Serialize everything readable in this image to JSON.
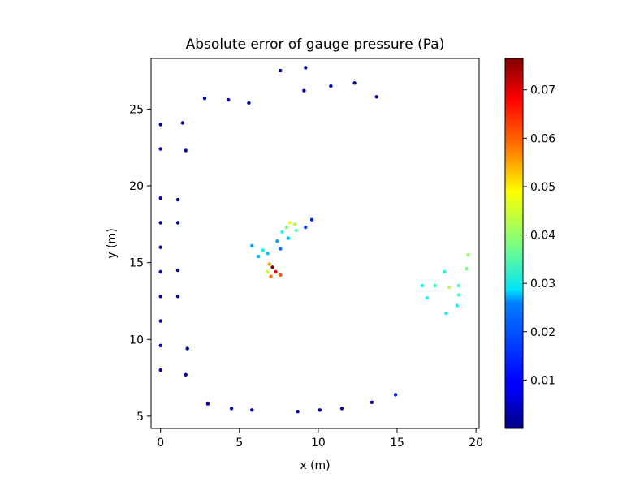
{
  "chart_data": {
    "type": "scatter",
    "title": "Absolute error of gauge pressure (Pa)",
    "xlabel": "x (m)",
    "ylabel": "y (m)",
    "xlim": [
      -0.6,
      20.2
    ],
    "ylim": [
      4.2,
      28.3
    ],
    "x_ticks": [
      0,
      5,
      10,
      15,
      20
    ],
    "y_ticks": [
      5,
      10,
      15,
      20,
      25
    ],
    "colorbar": {
      "colormap": "jet",
      "range": [
        0.0,
        0.0765
      ],
      "ticks": [
        0.01,
        0.02,
        0.03,
        0.04,
        0.05,
        0.06,
        0.07
      ]
    },
    "points": [
      {
        "x": 0.0,
        "y": 24.0,
        "v": 0.003
      },
      {
        "x": 0.0,
        "y": 22.4,
        "v": 0.003
      },
      {
        "x": 0.0,
        "y": 19.2,
        "v": 0.003
      },
      {
        "x": 0.0,
        "y": 17.6,
        "v": 0.003
      },
      {
        "x": 0.0,
        "y": 16.0,
        "v": 0.003
      },
      {
        "x": 0.0,
        "y": 14.4,
        "v": 0.003
      },
      {
        "x": 0.0,
        "y": 12.8,
        "v": 0.003
      },
      {
        "x": 0.0,
        "y": 11.2,
        "v": 0.003
      },
      {
        "x": 0.0,
        "y": 9.6,
        "v": 0.003
      },
      {
        "x": 0.0,
        "y": 8.0,
        "v": 0.003
      },
      {
        "x": 1.4,
        "y": 24.1,
        "v": 0.003
      },
      {
        "x": 1.6,
        "y": 22.3,
        "v": 0.003
      },
      {
        "x": 1.1,
        "y": 19.1,
        "v": 0.003
      },
      {
        "x": 1.1,
        "y": 17.6,
        "v": 0.003
      },
      {
        "x": 1.1,
        "y": 14.5,
        "v": 0.003
      },
      {
        "x": 1.1,
        "y": 12.8,
        "v": 0.003
      },
      {
        "x": 1.7,
        "y": 9.4,
        "v": 0.003
      },
      {
        "x": 1.6,
        "y": 7.7,
        "v": 0.003
      },
      {
        "x": 2.8,
        "y": 25.7,
        "v": 0.003
      },
      {
        "x": 4.3,
        "y": 25.6,
        "v": 0.003
      },
      {
        "x": 5.6,
        "y": 25.4,
        "v": 0.003
      },
      {
        "x": 7.6,
        "y": 27.5,
        "v": 0.003
      },
      {
        "x": 9.2,
        "y": 27.7,
        "v": 0.003
      },
      {
        "x": 10.8,
        "y": 26.5,
        "v": 0.003
      },
      {
        "x": 12.3,
        "y": 26.7,
        "v": 0.003
      },
      {
        "x": 9.1,
        "y": 26.2,
        "v": 0.003
      },
      {
        "x": 13.7,
        "y": 25.8,
        "v": 0.003
      },
      {
        "x": 3.0,
        "y": 5.8,
        "v": 0.003
      },
      {
        "x": 4.5,
        "y": 5.5,
        "v": 0.003
      },
      {
        "x": 5.8,
        "y": 5.4,
        "v": 0.003
      },
      {
        "x": 8.7,
        "y": 5.3,
        "v": 0.003
      },
      {
        "x": 10.1,
        "y": 5.4,
        "v": 0.003
      },
      {
        "x": 11.5,
        "y": 5.5,
        "v": 0.003
      },
      {
        "x": 13.4,
        "y": 5.9,
        "v": 0.003
      },
      {
        "x": 14.9,
        "y": 6.4,
        "v": 0.012
      },
      {
        "x": 19.5,
        "y": 15.5,
        "v": 0.04
      },
      {
        "x": 19.4,
        "y": 14.6,
        "v": 0.038
      },
      {
        "x": 18.3,
        "y": 13.4,
        "v": 0.042
      },
      {
        "x": 18.9,
        "y": 13.5,
        "v": 0.035
      },
      {
        "x": 18.9,
        "y": 12.9,
        "v": 0.033
      },
      {
        "x": 18.8,
        "y": 12.2,
        "v": 0.03
      },
      {
        "x": 18.1,
        "y": 11.7,
        "v": 0.03
      },
      {
        "x": 18.0,
        "y": 14.4,
        "v": 0.03
      },
      {
        "x": 17.4,
        "y": 13.5,
        "v": 0.033
      },
      {
        "x": 16.6,
        "y": 13.5,
        "v": 0.03
      },
      {
        "x": 16.9,
        "y": 12.7,
        "v": 0.03
      },
      {
        "x": 7.1,
        "y": 14.7,
        "v": 0.0765
      },
      {
        "x": 7.3,
        "y": 14.4,
        "v": 0.068
      },
      {
        "x": 7.6,
        "y": 14.2,
        "v": 0.06
      },
      {
        "x": 6.9,
        "y": 14.9,
        "v": 0.055
      },
      {
        "x": 7.0,
        "y": 14.1,
        "v": 0.058
      },
      {
        "x": 6.8,
        "y": 14.4,
        "v": 0.045
      },
      {
        "x": 8.2,
        "y": 17.6,
        "v": 0.047
      },
      {
        "x": 8.5,
        "y": 17.5,
        "v": 0.042
      },
      {
        "x": 8.0,
        "y": 17.3,
        "v": 0.038
      },
      {
        "x": 8.6,
        "y": 17.1,
        "v": 0.035
      },
      {
        "x": 7.7,
        "y": 17.0,
        "v": 0.032
      },
      {
        "x": 8.1,
        "y": 16.6,
        "v": 0.025
      },
      {
        "x": 7.4,
        "y": 16.4,
        "v": 0.022
      },
      {
        "x": 7.6,
        "y": 15.9,
        "v": 0.018
      },
      {
        "x": 6.8,
        "y": 15.6,
        "v": 0.025
      },
      {
        "x": 6.5,
        "y": 15.8,
        "v": 0.028
      },
      {
        "x": 6.2,
        "y": 15.4,
        "v": 0.024
      },
      {
        "x": 5.8,
        "y": 16.1,
        "v": 0.022
      },
      {
        "x": 9.2,
        "y": 17.3,
        "v": 0.015
      },
      {
        "x": 9.6,
        "y": 17.8,
        "v": 0.012
      }
    ]
  }
}
